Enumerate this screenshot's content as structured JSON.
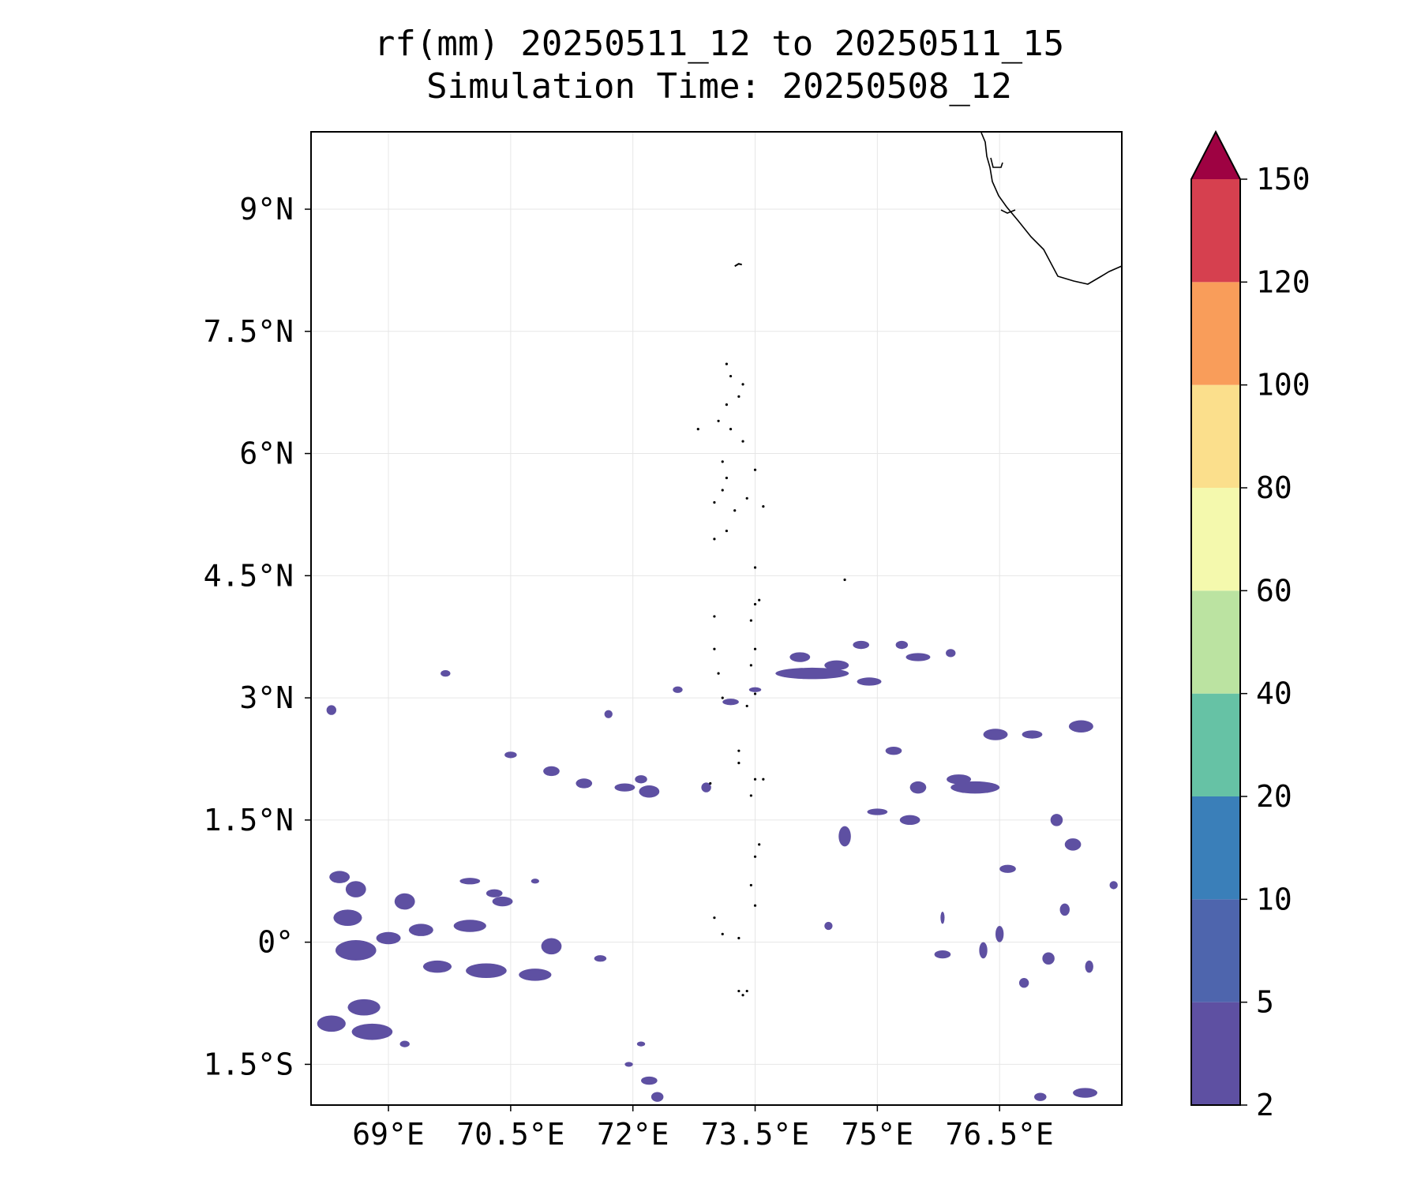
{
  "chart_data": {
    "type": "filled-contour map",
    "title": "rf(mm) 20250511_12 to 20250511_15",
    "subtitle": "Simulation Time: 20250508_12",
    "variable": "rf",
    "units": "mm",
    "valid_start": "20250511_12",
    "valid_end": "20250511_15",
    "simulation_time": "20250508_12",
    "lon_range": [
      68.05,
      78.0
    ],
    "lat_range": [
      -2.0,
      9.95
    ],
    "xticks": [
      {
        "value": 69.0,
        "label": "69°E"
      },
      {
        "value": 70.5,
        "label": "70.5°E"
      },
      {
        "value": 72.0,
        "label": "72°E"
      },
      {
        "value": 73.5,
        "label": "73.5°E"
      },
      {
        "value": 75.0,
        "label": "75°E"
      },
      {
        "value": 76.5,
        "label": "76.5°E"
      }
    ],
    "yticks": [
      {
        "value": 9.0,
        "label": "9°N"
      },
      {
        "value": 7.5,
        "label": "7.5°N"
      },
      {
        "value": 6.0,
        "label": "6°N"
      },
      {
        "value": 4.5,
        "label": "4.5°N"
      },
      {
        "value": 3.0,
        "label": "3°N"
      },
      {
        "value": 1.5,
        "label": "1.5°N"
      },
      {
        "value": 0.0,
        "label": "0°"
      },
      {
        "value": -1.5,
        "label": "1.5°S"
      }
    ],
    "grid": true,
    "colorbar": {
      "position": "right",
      "extend": "max",
      "levels": [
        2,
        5,
        10,
        20,
        40,
        60,
        80,
        100,
        120,
        150
      ],
      "level_labels": [
        "2",
        "5",
        "10",
        "20",
        "40",
        "60",
        "80",
        "100",
        "120",
        "150"
      ],
      "colors": [
        "#5e50a2",
        "#4e65ad",
        "#3a7fb9",
        "#66c2a5",
        "#bbe3a1",
        "#f4f9ad",
        "#fbdf8c",
        "#f99d5a",
        "#d6404f"
      ],
      "extend_color": "#9e0242"
    },
    "features": {
      "coastline": "southern India (Kerala) coast, top-right corner",
      "islands": "Maldives atolls near 73-73.7°E, 0.5°S-7.2°N"
    },
    "rain_patches_2_to_5mm": [
      {
        "lon": 68.6,
        "lat": -0.1,
        "w": 0.5,
        "h": 0.25
      },
      {
        "lon": 68.5,
        "lat": 0.3,
        "w": 0.35,
        "h": 0.2
      },
      {
        "lon": 68.7,
        "lat": -0.8,
        "w": 0.4,
        "h": 0.2
      },
      {
        "lon": 68.3,
        "lat": -1.0,
        "w": 0.35,
        "h": 0.2
      },
      {
        "lon": 68.8,
        "lat": -1.1,
        "w": 0.5,
        "h": 0.2
      },
      {
        "lon": 68.4,
        "lat": 0.8,
        "w": 0.25,
        "h": 0.15
      },
      {
        "lon": 68.6,
        "lat": 0.65,
        "w": 0.25,
        "h": 0.2
      },
      {
        "lon": 69.0,
        "lat": 0.05,
        "w": 0.3,
        "h": 0.15
      },
      {
        "lon": 69.2,
        "lat": 0.5,
        "w": 0.25,
        "h": 0.2
      },
      {
        "lon": 69.4,
        "lat": 0.15,
        "w": 0.3,
        "h": 0.15
      },
      {
        "lon": 69.6,
        "lat": -0.3,
        "w": 0.35,
        "h": 0.15
      },
      {
        "lon": 70.0,
        "lat": 0.2,
        "w": 0.4,
        "h": 0.15
      },
      {
        "lon": 70.2,
        "lat": -0.35,
        "w": 0.5,
        "h": 0.18
      },
      {
        "lon": 70.8,
        "lat": -0.4,
        "w": 0.4,
        "h": 0.15
      },
      {
        "lon": 71.0,
        "lat": -0.05,
        "w": 0.25,
        "h": 0.2
      },
      {
        "lon": 70.4,
        "lat": 0.5,
        "w": 0.25,
        "h": 0.12
      },
      {
        "lon": 70.3,
        "lat": 0.6,
        "w": 0.2,
        "h": 0.1
      },
      {
        "lon": 68.3,
        "lat": 2.85,
        "w": 0.12,
        "h": 0.12
      },
      {
        "lon": 69.7,
        "lat": 3.3,
        "w": 0.12,
        "h": 0.08
      },
      {
        "lon": 70.5,
        "lat": 2.3,
        "w": 0.15,
        "h": 0.08
      },
      {
        "lon": 71.0,
        "lat": 2.1,
        "w": 0.2,
        "h": 0.12
      },
      {
        "lon": 71.4,
        "lat": 1.95,
        "w": 0.2,
        "h": 0.12
      },
      {
        "lon": 71.7,
        "lat": 2.8,
        "w": 0.1,
        "h": 0.1
      },
      {
        "lon": 72.2,
        "lat": 1.85,
        "w": 0.25,
        "h": 0.15
      },
      {
        "lon": 72.55,
        "lat": 3.1,
        "w": 0.12,
        "h": 0.08
      },
      {
        "lon": 72.9,
        "lat": 1.9,
        "w": 0.12,
        "h": 0.12
      },
      {
        "lon": 73.2,
        "lat": 2.95,
        "w": 0.2,
        "h": 0.08
      },
      {
        "lon": 73.5,
        "lat": 3.1,
        "w": 0.15,
        "h": 0.06
      },
      {
        "lon": 72.1,
        "lat": 2.0,
        "w": 0.15,
        "h": 0.1
      },
      {
        "lon": 71.9,
        "lat": 1.9,
        "w": 0.25,
        "h": 0.1
      },
      {
        "lon": 74.05,
        "lat": 3.5,
        "w": 0.25,
        "h": 0.12
      },
      {
        "lon": 74.5,
        "lat": 3.4,
        "w": 0.3,
        "h": 0.12
      },
      {
        "lon": 74.2,
        "lat": 3.3,
        "w": 0.9,
        "h": 0.14
      },
      {
        "lon": 74.9,
        "lat": 3.2,
        "w": 0.3,
        "h": 0.1
      },
      {
        "lon": 74.8,
        "lat": 3.65,
        "w": 0.2,
        "h": 0.1
      },
      {
        "lon": 75.3,
        "lat": 3.65,
        "w": 0.15,
        "h": 0.1
      },
      {
        "lon": 75.5,
        "lat": 3.5,
        "w": 0.3,
        "h": 0.1
      },
      {
        "lon": 75.9,
        "lat": 3.55,
        "w": 0.12,
        "h": 0.1
      },
      {
        "lon": 75.4,
        "lat": 1.5,
        "w": 0.25,
        "h": 0.12
      },
      {
        "lon": 75.2,
        "lat": 2.35,
        "w": 0.2,
        "h": 0.1
      },
      {
        "lon": 75.5,
        "lat": 1.9,
        "w": 0.2,
        "h": 0.15
      },
      {
        "lon": 76.2,
        "lat": 1.9,
        "w": 0.6,
        "h": 0.15
      },
      {
        "lon": 76.0,
        "lat": 2.0,
        "w": 0.3,
        "h": 0.12
      },
      {
        "lon": 76.45,
        "lat": 2.55,
        "w": 0.3,
        "h": 0.14
      },
      {
        "lon": 76.9,
        "lat": 2.55,
        "w": 0.25,
        "h": 0.1
      },
      {
        "lon": 77.5,
        "lat": 2.65,
        "w": 0.3,
        "h": 0.15
      },
      {
        "lon": 77.4,
        "lat": 1.2,
        "w": 0.2,
        "h": 0.15
      },
      {
        "lon": 77.2,
        "lat": 1.5,
        "w": 0.15,
        "h": 0.15
      },
      {
        "lon": 74.6,
        "lat": 1.3,
        "w": 0.15,
        "h": 0.25
      },
      {
        "lon": 75.0,
        "lat": 1.6,
        "w": 0.25,
        "h": 0.08
      },
      {
        "lon": 76.6,
        "lat": 0.9,
        "w": 0.2,
        "h": 0.1
      },
      {
        "lon": 77.9,
        "lat": 0.7,
        "w": 0.1,
        "h": 0.1
      },
      {
        "lon": 77.3,
        "lat": 0.4,
        "w": 0.12,
        "h": 0.15
      },
      {
        "lon": 77.1,
        "lat": -0.2,
        "w": 0.15,
        "h": 0.15
      },
      {
        "lon": 76.3,
        "lat": -0.1,
        "w": 0.1,
        "h": 0.2
      },
      {
        "lon": 76.5,
        "lat": 0.1,
        "w": 0.1,
        "h": 0.2
      },
      {
        "lon": 75.8,
        "lat": -0.15,
        "w": 0.2,
        "h": 0.1
      },
      {
        "lon": 76.8,
        "lat": -0.5,
        "w": 0.12,
        "h": 0.12
      },
      {
        "lon": 77.6,
        "lat": -0.3,
        "w": 0.1,
        "h": 0.15
      },
      {
        "lon": 77.0,
        "lat": -1.9,
        "w": 0.15,
        "h": 0.1
      },
      {
        "lon": 77.55,
        "lat": -1.85,
        "w": 0.3,
        "h": 0.12
      },
      {
        "lon": 75.8,
        "lat": 0.3,
        "w": 0.05,
        "h": 0.15
      },
      {
        "lon": 74.4,
        "lat": 0.2,
        "w": 0.1,
        "h": 0.1
      },
      {
        "lon": 72.2,
        "lat": -1.7,
        "w": 0.2,
        "h": 0.1
      },
      {
        "lon": 72.3,
        "lat": -1.9,
        "w": 0.15,
        "h": 0.12
      },
      {
        "lon": 71.95,
        "lat": -1.5,
        "w": 0.1,
        "h": 0.06
      },
      {
        "lon": 72.1,
        "lat": -1.25,
        "w": 0.1,
        "h": 0.06
      },
      {
        "lon": 70.8,
        "lat": 0.75,
        "w": 0.1,
        "h": 0.06
      },
      {
        "lon": 71.6,
        "lat": -0.2,
        "w": 0.15,
        "h": 0.08
      },
      {
        "lon": 70.0,
        "lat": 0.75,
        "w": 0.25,
        "h": 0.08
      },
      {
        "lon": 69.2,
        "lat": -1.25,
        "w": 0.12,
        "h": 0.08
      }
    ]
  }
}
